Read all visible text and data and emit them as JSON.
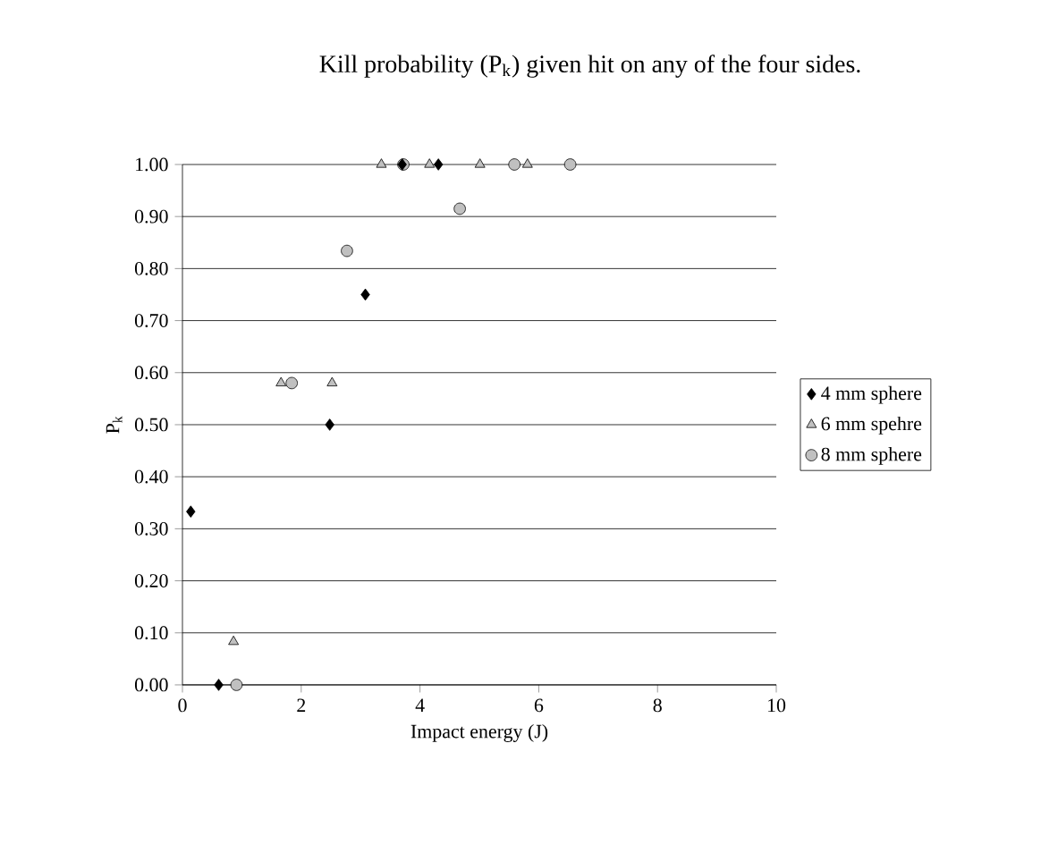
{
  "chart_data": {
    "type": "scatter",
    "title": "Kill probability (P$_{k}$) given hit on any of the four sides.",
    "xlabel": "Impact energy (J)",
    "ylabel": "P$_{k}$",
    "xlim": [
      0,
      10
    ],
    "xticks": [
      0,
      2,
      4,
      6,
      8,
      10
    ],
    "ylim": [
      0,
      1
    ],
    "yticks": [
      {
        "value": 0,
        "label": "0.00"
      },
      {
        "value": 0.1,
        "label": "0.10"
      },
      {
        "value": 0.2,
        "label": "0.20"
      },
      {
        "value": 0.3,
        "label": "0.30"
      },
      {
        "value": 0.4,
        "label": "0.40"
      },
      {
        "value": 0.5,
        "label": "0.50"
      },
      {
        "value": 0.6,
        "label": "0.60"
      },
      {
        "value": 0.7,
        "label": "0.70"
      },
      {
        "value": 0.8,
        "label": "0.80"
      },
      {
        "value": 0.9,
        "label": "0.90"
      },
      {
        "value": 1,
        "label": "1.00"
      }
    ],
    "grid": "y",
    "legend": "right",
    "series": [
      {
        "name": "4 mm sphere",
        "color": "#000000",
        "marker": "diamond",
        "x": [
          0.14,
          0.61,
          2.48,
          3.08,
          3.7,
          4.31
        ],
        "values": [
          0.333,
          0.0,
          0.5,
          0.75,
          1.0,
          1.0
        ]
      },
      {
        "name": "6 mm spehre",
        "color": "#c0c0c0",
        "marker": "triangle",
        "x": [
          0.86,
          1.66,
          2.52,
          3.35,
          4.16,
          5.01,
          5.81
        ],
        "values": [
          0.083,
          0.58,
          0.58,
          1.0,
          1.0,
          1.0,
          1.0
        ]
      },
      {
        "name": "8 mm sphere",
        "color": "#c0c0c0",
        "marker": "circle",
        "x": [
          0.91,
          1.84,
          2.77,
          3.72,
          4.67,
          5.59,
          6.53
        ],
        "values": [
          0.0,
          0.58,
          0.834,
          1.0,
          0.915,
          1.0,
          1.0
        ]
      }
    ]
  }
}
